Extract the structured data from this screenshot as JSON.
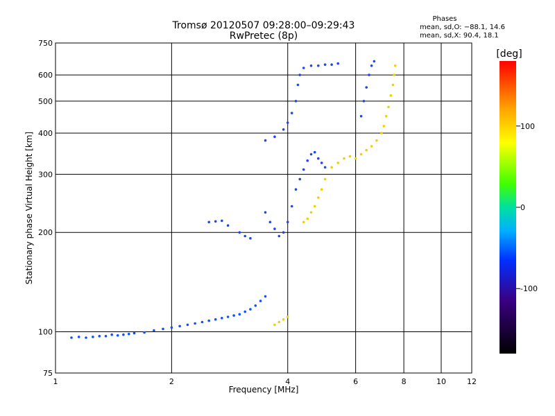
{
  "chart_data": {
    "type": "scatter",
    "title": "Tromsø 20120507 09:28:00–09:29:43",
    "subtitle": "RwPretec (8p)",
    "xlabel": "Frequency [MHz]",
    "ylabel": "Stationary phase Virtual Height [km]",
    "x_scale": "log",
    "y_scale": "log",
    "xlim": [
      1,
      12
    ],
    "ylim": [
      75,
      750
    ],
    "x_ticks": [
      1,
      2,
      4,
      6,
      8,
      10,
      12
    ],
    "y_ticks": [
      75,
      100,
      200,
      300,
      400,
      500,
      600,
      750
    ],
    "grid": true,
    "phases_box": {
      "title": "Phases",
      "line_o": "mean, sd,O: −88.1, 14.6",
      "line_x": "mean, sd,X:  90.4, 18.1"
    },
    "colorbar": {
      "label": "[deg]",
      "range": [
        -180,
        180
      ],
      "ticks": [
        100,
        0,
        -100
      ]
    },
    "series": [
      {
        "name": "",
        "points": [
          [
            1.1,
            96
          ],
          [
            1.15,
            96.5
          ],
          [
            1.2,
            96
          ],
          [
            1.25,
            96.5
          ],
          [
            1.3,
            97
          ],
          [
            1.35,
            97
          ],
          [
            1.4,
            98
          ],
          [
            1.45,
            97.5
          ],
          [
            1.5,
            98
          ],
          [
            1.55,
            98.5
          ],
          [
            1.6,
            99
          ],
          [
            1.7,
            99.5
          ],
          [
            1.8,
            101
          ],
          [
            1.9,
            102
          ],
          [
            2.0,
            103
          ],
          [
            2.1,
            104
          ],
          [
            2.2,
            105
          ],
          [
            2.3,
            106
          ],
          [
            2.4,
            107
          ],
          [
            2.5,
            108
          ],
          [
            2.6,
            109
          ],
          [
            2.7,
            110
          ],
          [
            2.8,
            111
          ],
          [
            2.9,
            112
          ],
          [
            3.0,
            113
          ],
          [
            3.1,
            115
          ],
          [
            3.2,
            117
          ],
          [
            3.3,
            120
          ],
          [
            3.4,
            124
          ],
          [
            3.5,
            128
          ]
        ]
      },
      {
        "name": "",
        "points": [
          [
            2.5,
            215
          ],
          [
            2.6,
            216
          ],
          [
            2.7,
            217
          ],
          [
            2.8,
            210
          ],
          [
            3.0,
            200
          ],
          [
            3.1,
            195
          ],
          [
            3.2,
            192
          ],
          [
            3.5,
            230
          ],
          [
            3.6,
            215
          ],
          [
            3.7,
            205
          ],
          [
            3.8,
            195
          ],
          [
            3.9,
            200
          ],
          [
            4.0,
            215
          ],
          [
            4.1,
            240
          ],
          [
            4.2,
            270
          ],
          [
            4.3,
            290
          ],
          [
            4.4,
            310
          ],
          [
            4.5,
            330
          ],
          [
            4.6,
            345
          ],
          [
            4.7,
            350
          ],
          [
            4.8,
            335
          ],
          [
            4.9,
            325
          ],
          [
            5.0,
            315
          ],
          [
            3.5,
            380
          ],
          [
            3.7,
            390
          ],
          [
            3.9,
            410
          ],
          [
            4.0,
            430
          ],
          [
            4.1,
            460
          ],
          [
            4.2,
            500
          ],
          [
            4.25,
            560
          ],
          [
            4.3,
            600
          ],
          [
            4.4,
            630
          ],
          [
            4.6,
            640
          ],
          [
            4.8,
            640
          ],
          [
            5.0,
            645
          ],
          [
            5.2,
            645
          ],
          [
            5.4,
            650
          ],
          [
            6.2,
            450
          ],
          [
            6.3,
            500
          ],
          [
            6.4,
            550
          ],
          [
            6.5,
            600
          ],
          [
            6.6,
            640
          ],
          [
            6.7,
            660
          ]
        ]
      },
      {
        "name": "",
        "points": [
          [
            3.7,
            105
          ],
          [
            3.8,
            107
          ],
          [
            3.9,
            109
          ],
          [
            4.0,
            111
          ],
          [
            4.4,
            215
          ],
          [
            4.5,
            220
          ],
          [
            4.6,
            230
          ],
          [
            4.7,
            240
          ],
          [
            4.8,
            255
          ],
          [
            4.9,
            270
          ],
          [
            5.0,
            290
          ],
          [
            5.2,
            315
          ],
          [
            5.4,
            325
          ],
          [
            5.6,
            335
          ],
          [
            5.8,
            340
          ],
          [
            6.0,
            335
          ],
          [
            6.2,
            345
          ],
          [
            6.4,
            355
          ],
          [
            6.6,
            365
          ],
          [
            6.8,
            380
          ],
          [
            7.0,
            400
          ],
          [
            7.1,
            420
          ],
          [
            7.2,
            450
          ],
          [
            7.3,
            480
          ],
          [
            7.4,
            520
          ],
          [
            7.5,
            560
          ],
          [
            7.55,
            600
          ],
          [
            7.6,
            640
          ]
        ]
      }
    ]
  }
}
